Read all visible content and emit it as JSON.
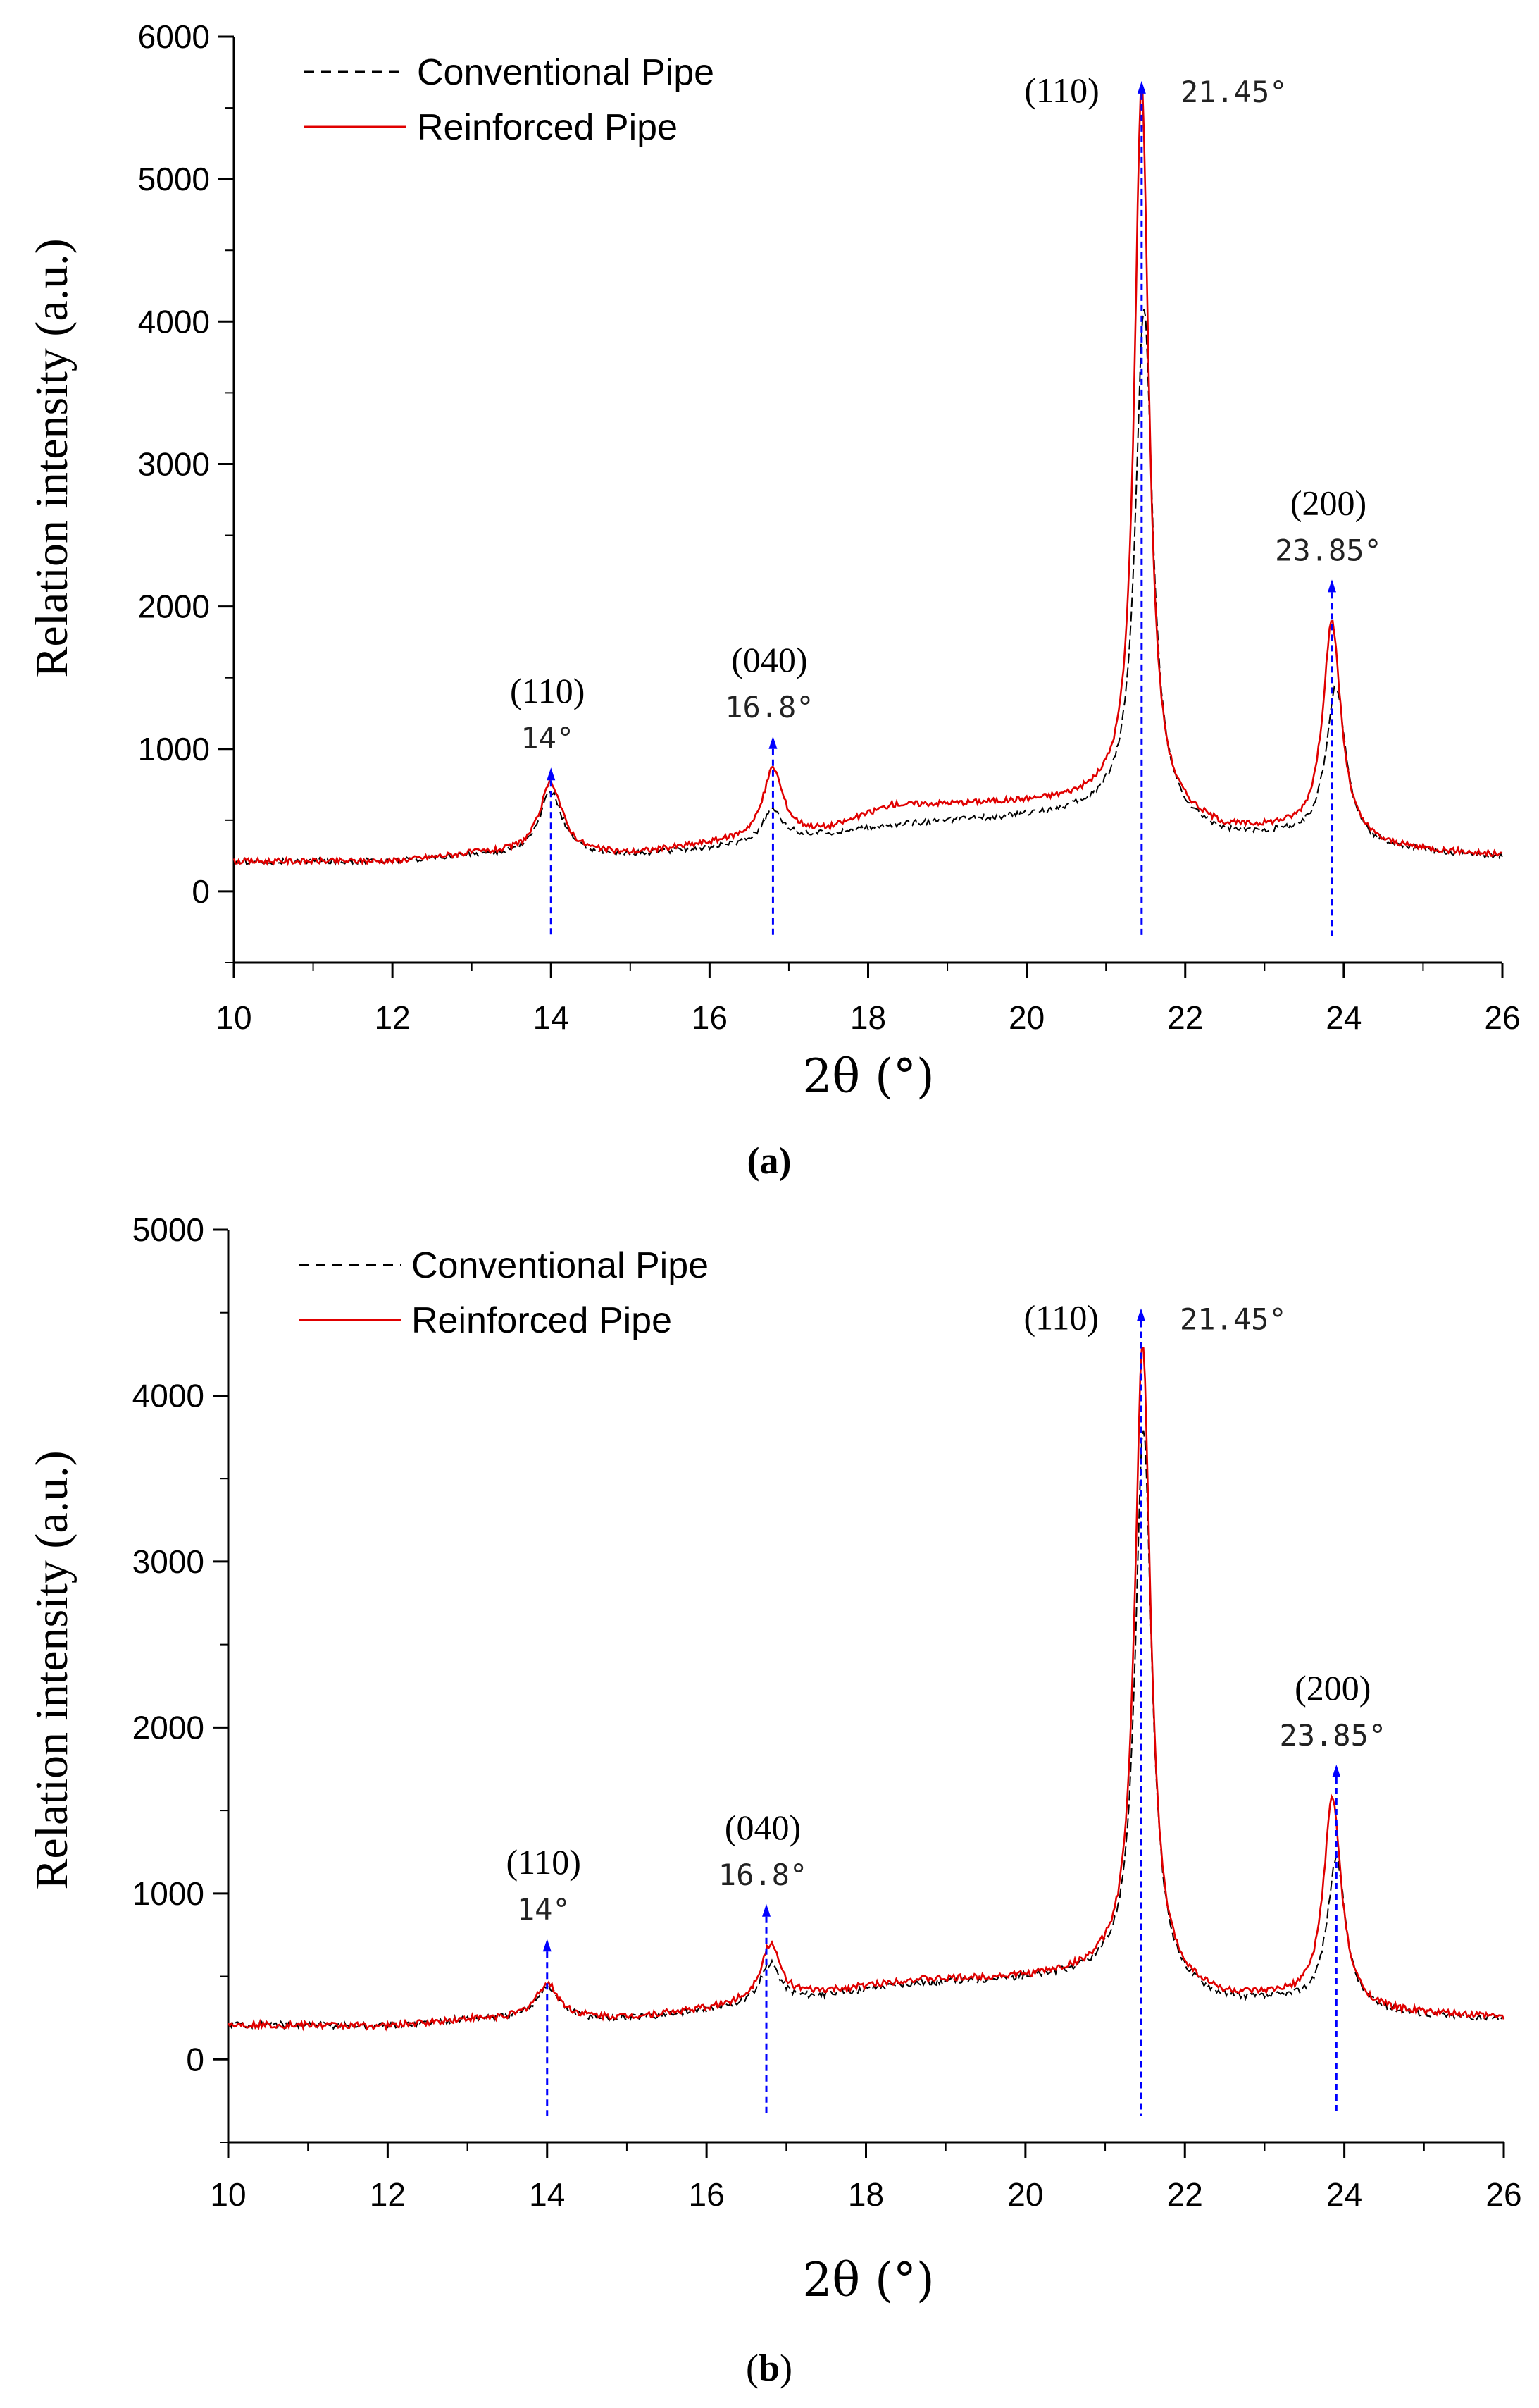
{
  "colors": {
    "conventional": "#000000",
    "reinforced": "#e00000",
    "peak_marker": "#0000ff"
  },
  "chart_data": [
    {
      "type": "line",
      "panel": "a",
      "caption_label": "a",
      "xlabel": "2θ (°)",
      "ylabel": "Relation intensity (a.u.)",
      "xlim": [
        10,
        26
      ],
      "ylim": [
        -500,
        6000
      ],
      "x_ticks": [
        "10",
        "12",
        "14",
        "16",
        "18",
        "20",
        "22",
        "24",
        "26"
      ],
      "y_ticks": [
        "0",
        "1000",
        "2000",
        "3000",
        "4000",
        "5000",
        "6000"
      ],
      "legend_position": "top-left",
      "series": [
        {
          "name": "Conventional Pipe",
          "style": "dashed",
          "baseline": [
            [
              10,
              210
            ],
            [
              12,
              210
            ],
            [
              13,
              250
            ],
            [
              15,
              250
            ],
            [
              16,
              300
            ],
            [
              17.5,
              400
            ],
            [
              18.5,
              470
            ],
            [
              20,
              520
            ],
            [
              21,
              560
            ],
            [
              22.5,
              380
            ],
            [
              23.2,
              380
            ],
            [
              24.5,
              290
            ],
            [
              26,
              240
            ]
          ],
          "peaks": [
            [
              14.0,
              450,
              0.35
            ],
            [
              16.8,
              220,
              0.3
            ],
            [
              21.48,
              3600,
              0.26
            ],
            [
              23.9,
              1100,
              0.3
            ]
          ]
        },
        {
          "name": "Reinforced Pipe",
          "style": "solid",
          "baseline": [
            [
              10,
              210
            ],
            [
              12,
              210
            ],
            [
              13,
              260
            ],
            [
              15,
              260
            ],
            [
              16,
              330
            ],
            [
              17.5,
              430
            ],
            [
              18.3,
              600
            ],
            [
              20,
              620
            ],
            [
              21,
              640
            ],
            [
              22.5,
              420
            ],
            [
              23.2,
              420
            ],
            [
              24.5,
              300
            ],
            [
              26,
              250
            ]
          ],
          "peaks": [
            [
              14.0,
              500,
              0.35
            ],
            [
              16.8,
              480,
              0.3
            ],
            [
              21.45,
              5100,
              0.22
            ],
            [
              23.85,
              1520,
              0.28
            ]
          ]
        }
      ],
      "annotations": [
        {
          "hkl": "(110)",
          "angle": "14°",
          "x": 14.0,
          "marker_y": 780
        },
        {
          "hkl": "(040)",
          "angle": "16.8°",
          "x": 16.8,
          "marker_y": 1000
        },
        {
          "hkl": "(110)",
          "angle": "21.45°",
          "x": 21.45,
          "marker_y": 5600
        },
        {
          "hkl": "(200)",
          "angle": "23.85°",
          "x": 23.85,
          "marker_y": 2100
        }
      ]
    },
    {
      "type": "line",
      "panel": "b",
      "caption_label": "b",
      "xlabel": "2θ (°)",
      "ylabel": "Relation intensity (a.u.)",
      "xlim": [
        10,
        26
      ],
      "ylim": [
        -500,
        5000
      ],
      "x_ticks": [
        "10",
        "12",
        "14",
        "16",
        "18",
        "20",
        "22",
        "24",
        "26"
      ],
      "y_ticks": [
        "0",
        "1000",
        "2000",
        "3000",
        "4000",
        "5000"
      ],
      "legend_position": "top-left",
      "series": [
        {
          "name": "Conventional Pipe",
          "style": "dashed",
          "baseline": [
            [
              10,
              210
            ],
            [
              12,
              200
            ],
            [
              13,
              240
            ],
            [
              15,
              240
            ],
            [
              16,
              290
            ],
            [
              17.5,
              380
            ],
            [
              18.5,
              450
            ],
            [
              20,
              480
            ],
            [
              21,
              500
            ],
            [
              22.5,
              340
            ],
            [
              23.2,
              340
            ],
            [
              24.5,
              270
            ],
            [
              26,
              240
            ]
          ],
          "peaks": [
            [
              14.0,
              200,
              0.35
            ],
            [
              16.8,
              240,
              0.3
            ],
            [
              21.48,
              3350,
              0.25
            ],
            [
              23.9,
              900,
              0.28
            ]
          ]
        },
        {
          "name": "Reinforced Pipe",
          "style": "solid",
          "baseline": [
            [
              10,
              210
            ],
            [
              12,
              200
            ],
            [
              13,
              240
            ],
            [
              15,
              250
            ],
            [
              16,
              300
            ],
            [
              17.5,
              400
            ],
            [
              18.5,
              470
            ],
            [
              20,
              490
            ],
            [
              21,
              520
            ],
            [
              22.5,
              360
            ],
            [
              23.2,
              360
            ],
            [
              24.5,
              280
            ],
            [
              26,
              250
            ]
          ],
          "peaks": [
            [
              14.0,
              210,
              0.35
            ],
            [
              16.8,
              340,
              0.3
            ],
            [
              21.47,
              3850,
              0.24
            ],
            [
              23.85,
              1250,
              0.27
            ]
          ]
        }
      ],
      "annotations": [
        {
          "hkl": "(110)",
          "angle": "14°",
          "x": 14.0,
          "marker_y": 650
        },
        {
          "hkl": "(040)",
          "angle": "16.8°",
          "x": 16.75,
          "marker_y": 860
        },
        {
          "hkl": "(110)",
          "angle": "21.45°",
          "x": 21.45,
          "marker_y": 4450
        },
        {
          "hkl": "(200)",
          "angle": "23.85°",
          "x": 23.9,
          "marker_y": 1700
        }
      ]
    }
  ]
}
